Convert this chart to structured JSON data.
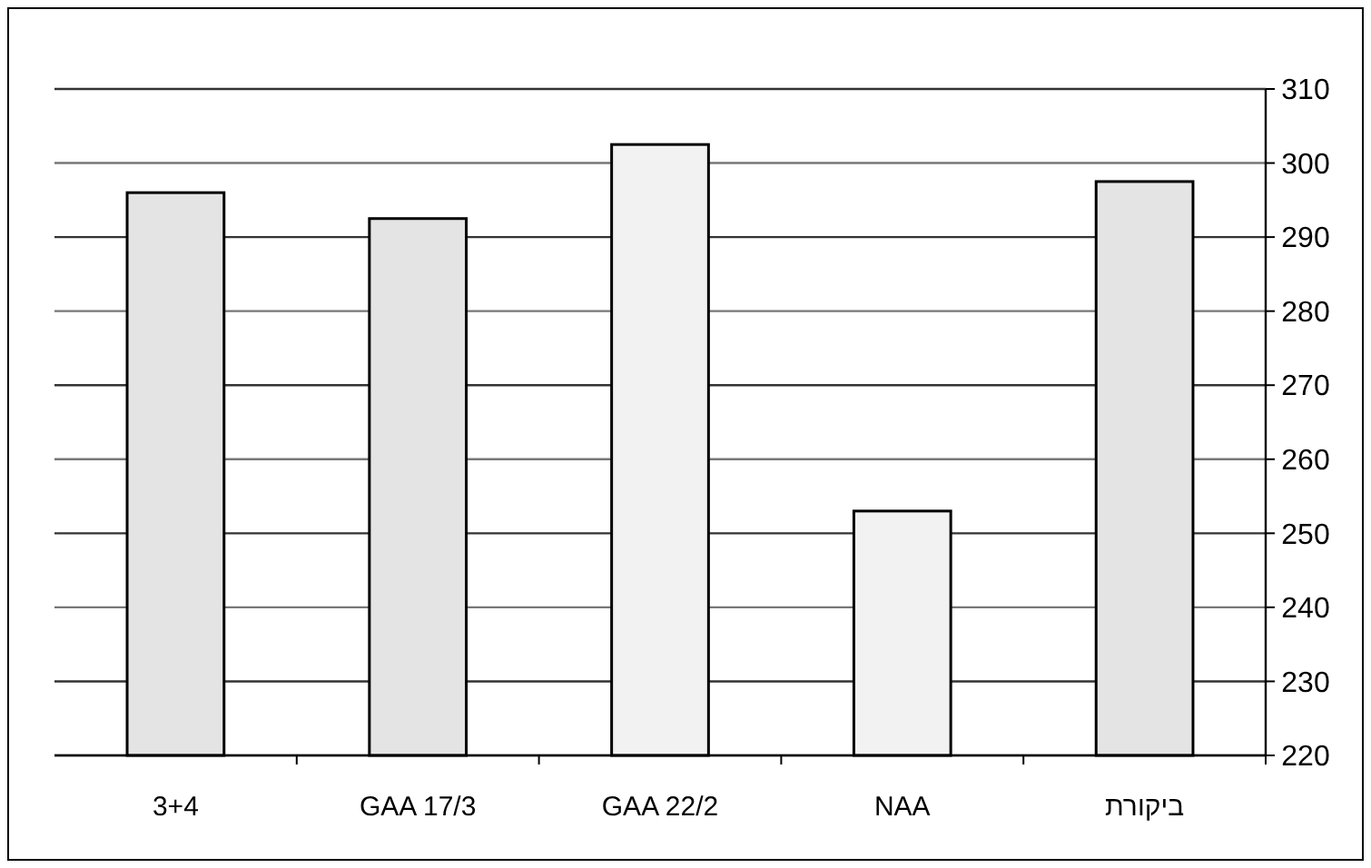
{
  "chart_data": {
    "type": "bar",
    "categories": [
      "3+4",
      "GAA 17/3",
      "GAA 22/2",
      "NAA",
      "ביקורת"
    ],
    "values": [
      296,
      292.5,
      302.5,
      253,
      297.5
    ],
    "colors": [
      "#e4e4e4",
      "#e4e4e4",
      "#f2f2f2",
      "#f2f2f2",
      "#e4e4e4"
    ],
    "ylim": [
      220,
      310
    ],
    "yticks": [
      220,
      230,
      240,
      250,
      260,
      270,
      280,
      290,
      300,
      310
    ],
    "grid": "y"
  }
}
